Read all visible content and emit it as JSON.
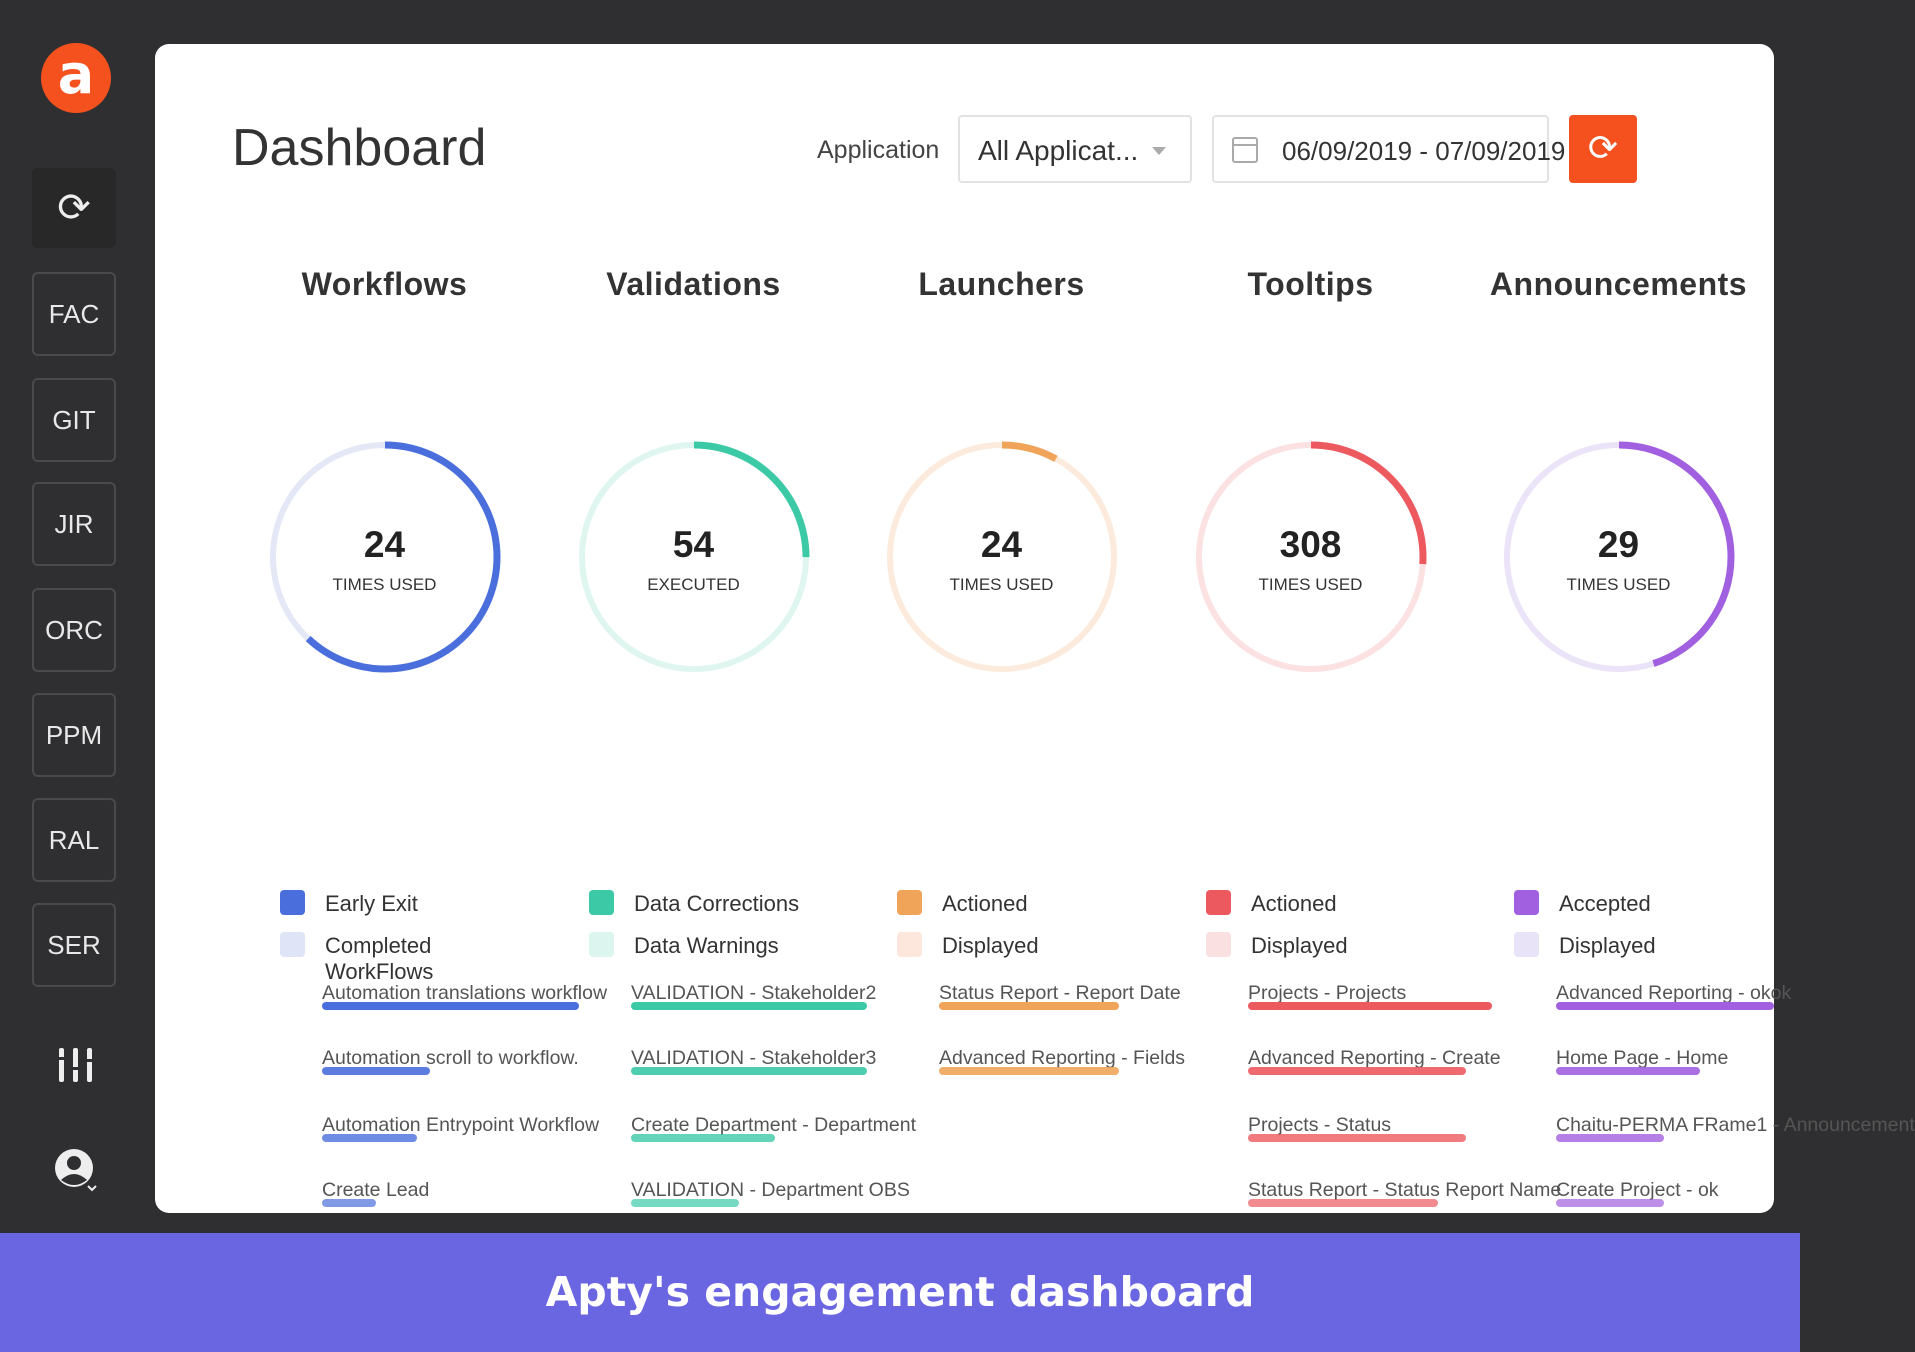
{
  "sidebar": {
    "logo": "a",
    "items": [
      "FAC",
      "GIT",
      "JIR",
      "ORC",
      "PPM",
      "RAL",
      "SER"
    ]
  },
  "header": {
    "title": "Dashboard",
    "application_label": "Application",
    "application_value": "All Applicat...",
    "date_range": "06/09/2019 - 07/09/2019"
  },
  "columns": [
    {
      "title": "Workflows",
      "value": "24",
      "unit": "TIMES USED",
      "arc_fraction": 0.62,
      "color": "#4a6fdc",
      "track": "#e3e7f6",
      "legend": [
        {
          "label": "Early Exit",
          "color": "#4a6fdc"
        },
        {
          "label": "Completed WorkFlows",
          "color": "#dfe4f6"
        }
      ],
      "items": [
        {
          "label": "Automation translations workflow",
          "bar": 1.0
        },
        {
          "label": "Automation scroll to workflow.",
          "bar": 0.42
        },
        {
          "label": "Automation Entrypoint Workflow",
          "bar": 0.37
        },
        {
          "label": "Create Lead",
          "bar": 0.21
        }
      ]
    },
    {
      "title": "Validations",
      "value": "54",
      "unit": "EXECUTED",
      "arc_fraction": 0.25,
      "color": "#3cc9a6",
      "track": "#def6ef",
      "legend": [
        {
          "label": "Data Corrections",
          "color": "#3cc9a6"
        },
        {
          "label": "Data Warnings",
          "color": "#dcf5ee"
        }
      ],
      "items": [
        {
          "label": "VALIDATION - Stakeholder2",
          "bar": 0.92
        },
        {
          "label": "VALIDATION - Stakeholder3",
          "bar": 0.92
        },
        {
          "label": "Create Department - Department",
          "bar": 0.56
        },
        {
          "label": "VALIDATION - Department OBS",
          "bar": 0.42
        }
      ]
    },
    {
      "title": "Launchers",
      "value": "24",
      "unit": "TIMES USED",
      "arc_fraction": 0.08,
      "color": "#f0a45a",
      "track": "#fcebdd",
      "legend": [
        {
          "label": "Actioned",
          "color": "#f0a45a"
        },
        {
          "label": "Displayed",
          "color": "#fde6dc"
        }
      ],
      "items": [
        {
          "label": "Status Report - Report Date",
          "bar": 0.7
        },
        {
          "label": "Advanced Reporting - Fields",
          "bar": 0.7
        }
      ]
    },
    {
      "title": "Tooltips",
      "value": "308",
      "unit": "TIMES USED",
      "arc_fraction": 0.26,
      "color": "#ec5a5f",
      "track": "#fbe1e2",
      "legend": [
        {
          "label": "Actioned",
          "color": "#ec5a5f"
        },
        {
          "label": "Displayed",
          "color": "#fbe0e1"
        }
      ],
      "items": [
        {
          "label": "Projects - Projects",
          "bar": 0.95
        },
        {
          "label": "Advanced Reporting - Create",
          "bar": 0.85
        },
        {
          "label": "Projects - Status",
          "bar": 0.85
        },
        {
          "label": "Status Report - Status Report Name",
          "bar": 0.74
        }
      ]
    },
    {
      "title": "Announcements",
      "value": "29",
      "unit": "TIMES USED",
      "arc_fraction": 0.45,
      "color": "#a160e0",
      "track": "#ebe3f7",
      "legend": [
        {
          "label": "Accepted",
          "color": "#a160e0"
        },
        {
          "label": "Displayed",
          "color": "#e9e3f8"
        }
      ],
      "items": [
        {
          "label": "Advanced Reporting - okok",
          "bar": 0.85
        },
        {
          "label": "Home Page - Home",
          "bar": 0.56
        },
        {
          "label": "Chaitu-PERMA FRame1 - Announcement",
          "bar": 0.42
        },
        {
          "label": "Create Project - ok",
          "bar": 0.42
        }
      ]
    }
  ],
  "banner": "Apty's engagement dashboard"
}
